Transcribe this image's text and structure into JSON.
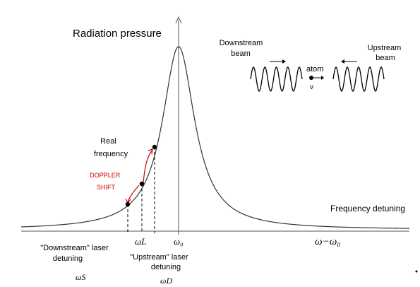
{
  "title": "Radiation pressure",
  "x_axis_label": "Frequency detuning",
  "omega_minus_omega0": "ω−ω₀",
  "omega0": "ω₀",
  "omegaL": "ωL",
  "omegaS": "ωS",
  "omegaD": "ωD",
  "real_frequency": [
    "Real",
    "frequency"
  ],
  "doppler_shift": [
    "DOPPLER",
    "SHIFT"
  ],
  "downstream_detuning": [
    "\"Downstream\" laser",
    "detuning"
  ],
  "upstream_detuning": [
    "\"Upstream\" laser",
    "detuning"
  ],
  "downstream_beam": [
    "Downstream",
    "beam"
  ],
  "upstream_beam": [
    "Upstream",
    "beam"
  ],
  "atom_label": "atom",
  "velocity_label": "v",
  "colors": {
    "curve": "#333333",
    "doppler": "#cc0000",
    "text": "#000000"
  }
}
